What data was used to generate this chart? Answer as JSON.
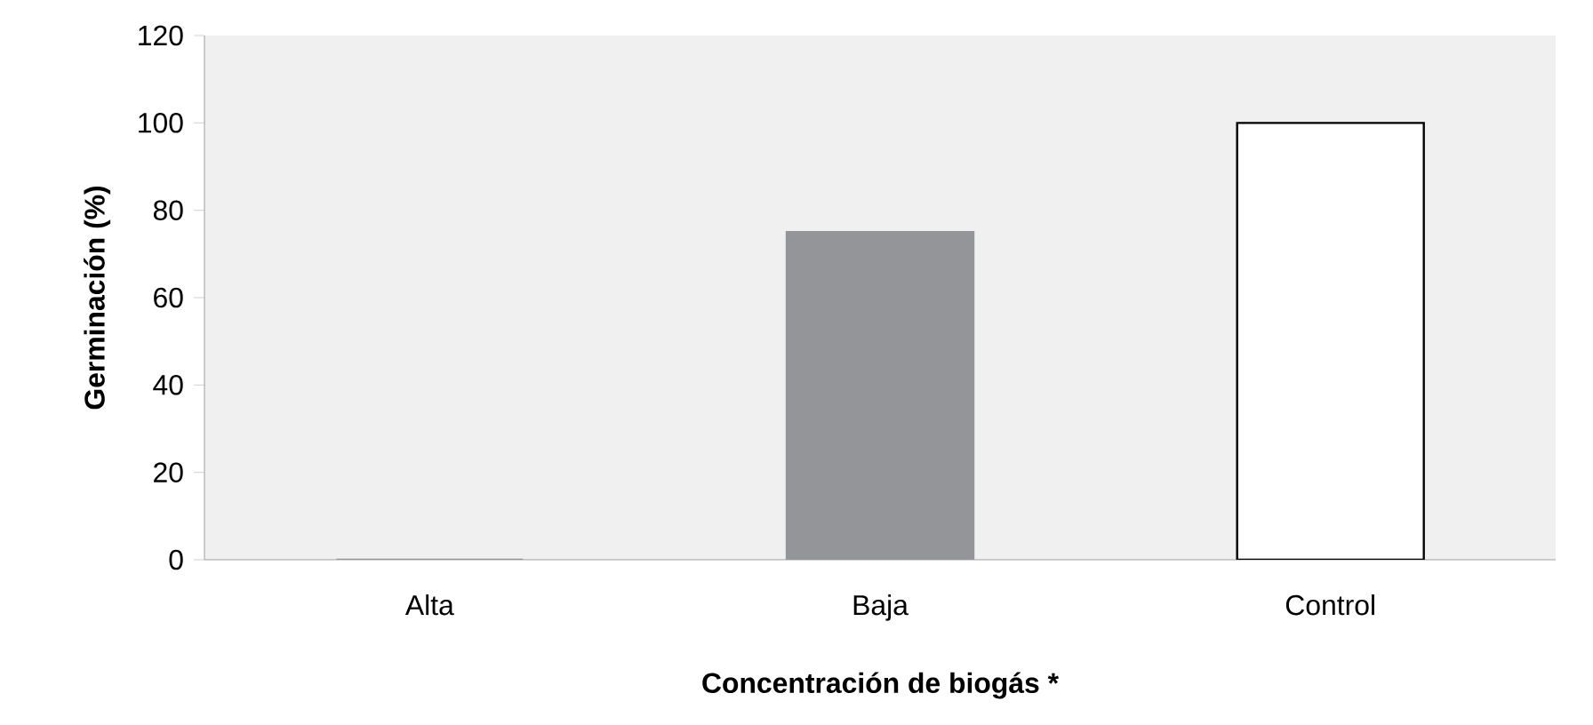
{
  "chart_data": {
    "type": "bar",
    "xlabel": "Concentración de biogás *",
    "ylabel": "Germinación (%)",
    "categories": [
      "Alta",
      "Baja",
      "Control"
    ],
    "values": [
      0,
      75,
      100
    ],
    "colors": [
      "#939598",
      "#939598",
      "#ffffff"
    ],
    "ylim": [
      0,
      120
    ],
    "yticks": [
      0,
      20,
      40,
      60,
      80,
      100,
      120
    ],
    "grid": false
  }
}
